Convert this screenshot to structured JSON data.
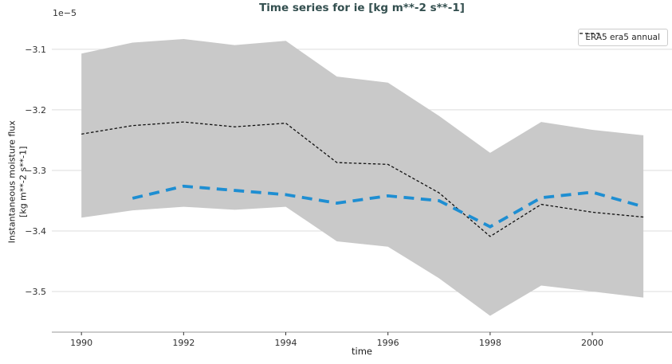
{
  "chart_data": {
    "type": "line",
    "title": "Time series for ie [kg m**-2 s**-1]",
    "xlabel": "time",
    "ylabel": [
      "Instantaneous moisture flux",
      "[kg m**-2 s**-1]"
    ],
    "y_offset_text": "1e−5",
    "y_unit_scale": "1e-5",
    "grid": true,
    "legend_position": "upper right",
    "xlim": [
      1989.42,
      2001.56
    ],
    "ylim": [
      -3.567,
      -3.062
    ],
    "x_ticks": [
      1990,
      1992,
      1994,
      1996,
      1998,
      2000
    ],
    "x_tick_labels": [
      "1990",
      "1992",
      "1994",
      "1996",
      "1998",
      "2000"
    ],
    "y_ticks": [
      -3.1,
      -3.2,
      -3.3,
      -3.4,
      -3.5
    ],
    "y_tick_labels": [
      "−3.1",
      "−3.2",
      "−3.3",
      "−3.4",
      "−3.5"
    ],
    "band": {
      "name": "gray uncertainty band",
      "color": "#c9c9c9",
      "x": [
        1990,
        1991,
        1992,
        1993,
        1994,
        1995,
        1996,
        1997,
        1998,
        1999,
        2000,
        2001
      ],
      "upper": [
        -3.107,
        -3.089,
        -3.083,
        -3.093,
        -3.086,
        -3.145,
        -3.155,
        -3.21,
        -3.271,
        -3.22,
        -3.233,
        -3.242
      ],
      "lower": [
        -3.378,
        -3.366,
        -3.36,
        -3.365,
        -3.36,
        -3.417,
        -3.426,
        -3.478,
        -3.54,
        -3.49,
        -3.5,
        -3.51
      ]
    },
    "series": [
      {
        "name": "ERA5 era5 annual",
        "color": "#111111",
        "width": 1.3,
        "dash": [
          3.5,
          2.5
        ],
        "x": [
          1990,
          1991,
          1992,
          1993,
          1994,
          1995,
          1996,
          1997,
          1998,
          1999,
          2000,
          2001
        ],
        "y": [
          -3.24,
          -3.226,
          -3.22,
          -3.228,
          -3.222,
          -3.287,
          -3.29,
          -3.337,
          -3.409,
          -3.356,
          -3.369,
          -3.377
        ]
      },
      {
        "name": "blue dashed series",
        "color": "#1e8ed2",
        "width": 3.8,
        "dash": [
          13,
          8.5
        ],
        "x": [
          1991,
          1992,
          1993,
          1994,
          1995,
          1996,
          1997,
          1998,
          1999,
          2000,
          2001
        ],
        "y": [
          -3.346,
          -3.326,
          -3.333,
          -3.34,
          -3.354,
          -3.342,
          -3.35,
          -3.393,
          -3.345,
          -3.336,
          -3.36
        ]
      }
    ]
  },
  "legend": {
    "items": [
      {
        "label": "ERA5 era5 annual"
      }
    ]
  },
  "style": {
    "grid_color": "#dcdcdc",
    "spine_color": "#c4c4c4",
    "tick_color": "#333333",
    "tick_label_color": "#303030",
    "title_color": "#334f4f",
    "background": "#ffffff"
  }
}
